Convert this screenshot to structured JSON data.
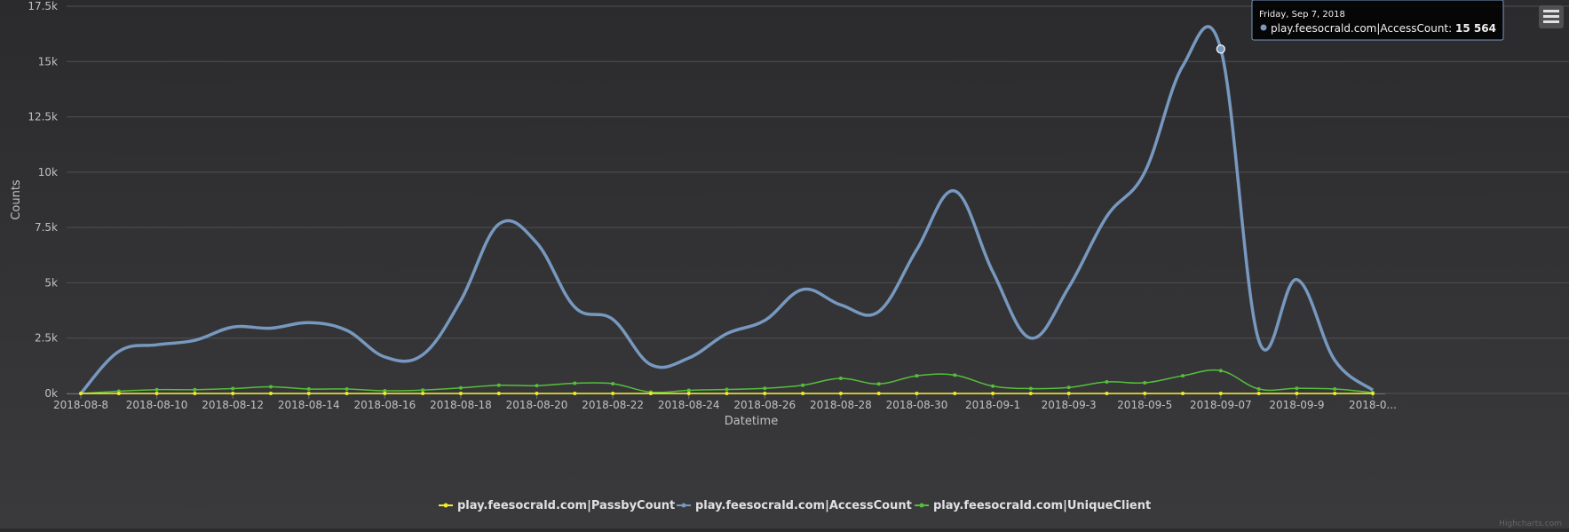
{
  "chart_data": {
    "type": "line",
    "xlabel": "Datetime",
    "ylabel": "Counts",
    "ylim": [
      0,
      17500
    ],
    "yticks": [
      {
        "value": 0,
        "label": "0k"
      },
      {
        "value": 2500,
        "label": "2.5k"
      },
      {
        "value": 5000,
        "label": "5k"
      },
      {
        "value": 7500,
        "label": "7.5k"
      },
      {
        "value": 10000,
        "label": "10k"
      },
      {
        "value": 12500,
        "label": "12.5k"
      },
      {
        "value": 15000,
        "label": "15k"
      },
      {
        "value": 17500,
        "label": "17.5k"
      }
    ],
    "xticks": [
      "2018-08-8",
      "2018-08-10",
      "2018-08-12",
      "2018-08-14",
      "2018-08-16",
      "2018-08-18",
      "2018-08-20",
      "2018-08-22",
      "2018-08-24",
      "2018-08-26",
      "2018-08-28",
      "2018-08-30",
      "2018-09-1",
      "2018-09-3",
      "2018-09-5",
      "2018-09-07",
      "2018-09-9",
      "2018-0..."
    ],
    "x": [
      "2018-08-08",
      "2018-08-09",
      "2018-08-10",
      "2018-08-11",
      "2018-08-12",
      "2018-08-13",
      "2018-08-14",
      "2018-08-15",
      "2018-08-16",
      "2018-08-17",
      "2018-08-18",
      "2018-08-19",
      "2018-08-20",
      "2018-08-21",
      "2018-08-22",
      "2018-08-23",
      "2018-08-24",
      "2018-08-25",
      "2018-08-26",
      "2018-08-27",
      "2018-08-28",
      "2018-08-29",
      "2018-08-30",
      "2018-08-31",
      "2018-09-01",
      "2018-09-02",
      "2018-09-03",
      "2018-09-04",
      "2018-09-05",
      "2018-09-06",
      "2018-09-07",
      "2018-09-08",
      "2018-09-09",
      "2018-09-10",
      "2018-09-11"
    ],
    "series": [
      {
        "name": "play.feesocrald.com|PassbyCount",
        "color": "#f0ea2a",
        "markers": true,
        "values": [
          0,
          0,
          0,
          0,
          0,
          0,
          0,
          0,
          0,
          0,
          0,
          0,
          0,
          0,
          0,
          0,
          0,
          0,
          0,
          0,
          0,
          0,
          0,
          0,
          0,
          0,
          0,
          0,
          0,
          0,
          0,
          0,
          0,
          0,
          0
        ]
      },
      {
        "name": "play.feesocrald.com|AccessCount",
        "color": "#7798bf",
        "markers": false,
        "values": [
          0,
          1900,
          2200,
          2400,
          3000,
          2950,
          3200,
          2850,
          1650,
          1750,
          4200,
          7650,
          6800,
          3900,
          3350,
          1300,
          1600,
          2700,
          3300,
          4700,
          4000,
          3700,
          6500,
          9150,
          5500,
          2500,
          4800,
          8000,
          10000,
          14800,
          15564,
          2400,
          5150,
          1500,
          150
        ]
      },
      {
        "name": "play.feesocrald.com|UniqueClient",
        "color": "#55bf3b",
        "markers": true,
        "values": [
          0,
          100,
          170,
          170,
          220,
          300,
          200,
          200,
          120,
          150,
          250,
          370,
          350,
          460,
          440,
          60,
          140,
          180,
          230,
          370,
          680,
          430,
          800,
          830,
          330,
          220,
          270,
          520,
          480,
          800,
          1030,
          200,
          230,
          200,
          40
        ]
      }
    ],
    "legend_position": "bottom-center",
    "grid": true,
    "tooltip": {
      "date": "Friday, Sep 7, 2018",
      "series": "play.feesocrald.com|AccessCount",
      "label": "play.feesocrald.com|AccessCount: ",
      "value_text": "15 564",
      "point_index": 30
    },
    "credits": "Highcharts.com",
    "background": "#2b2b2d",
    "grid_color": "#505053",
    "axis_line_color": "#707073"
  }
}
